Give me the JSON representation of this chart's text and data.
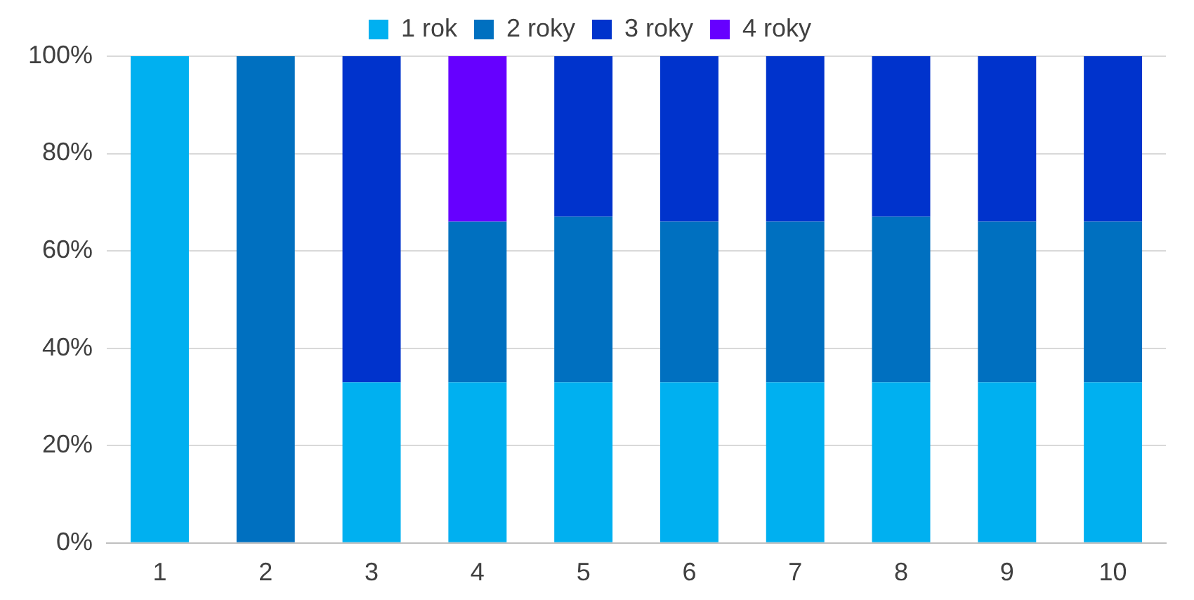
{
  "chart_data": {
    "type": "bar",
    "stacked": true,
    "categories": [
      "1",
      "2",
      "3",
      "4",
      "5",
      "6",
      "7",
      "8",
      "9",
      "10"
    ],
    "series": [
      {
        "name": "1 rok",
        "color": "#00b0f0",
        "values": [
          100,
          0,
          33,
          33,
          33,
          33,
          33,
          33,
          33,
          33
        ]
      },
      {
        "name": "2 roky",
        "color": "#0070c0",
        "values": [
          0,
          100,
          0,
          33,
          34,
          33,
          33,
          34,
          33,
          33
        ]
      },
      {
        "name": "3 roky",
        "color": "#0033cc",
        "values": [
          0,
          0,
          67,
          0,
          33,
          34,
          34,
          33,
          34,
          34
        ]
      },
      {
        "name": "4 roky",
        "color": "#6600ff",
        "values": [
          0,
          0,
          0,
          34,
          0,
          0,
          0,
          0,
          0,
          0
        ]
      }
    ],
    "ylim": [
      0,
      100
    ],
    "yticks": [
      {
        "value": 0,
        "label": "0%"
      },
      {
        "value": 20,
        "label": "20%"
      },
      {
        "value": 40,
        "label": "40%"
      },
      {
        "value": 60,
        "label": "60%"
      },
      {
        "value": 80,
        "label": "80%"
      },
      {
        "value": 100,
        "label": "100%"
      }
    ],
    "grid": "y",
    "legend": "top"
  }
}
